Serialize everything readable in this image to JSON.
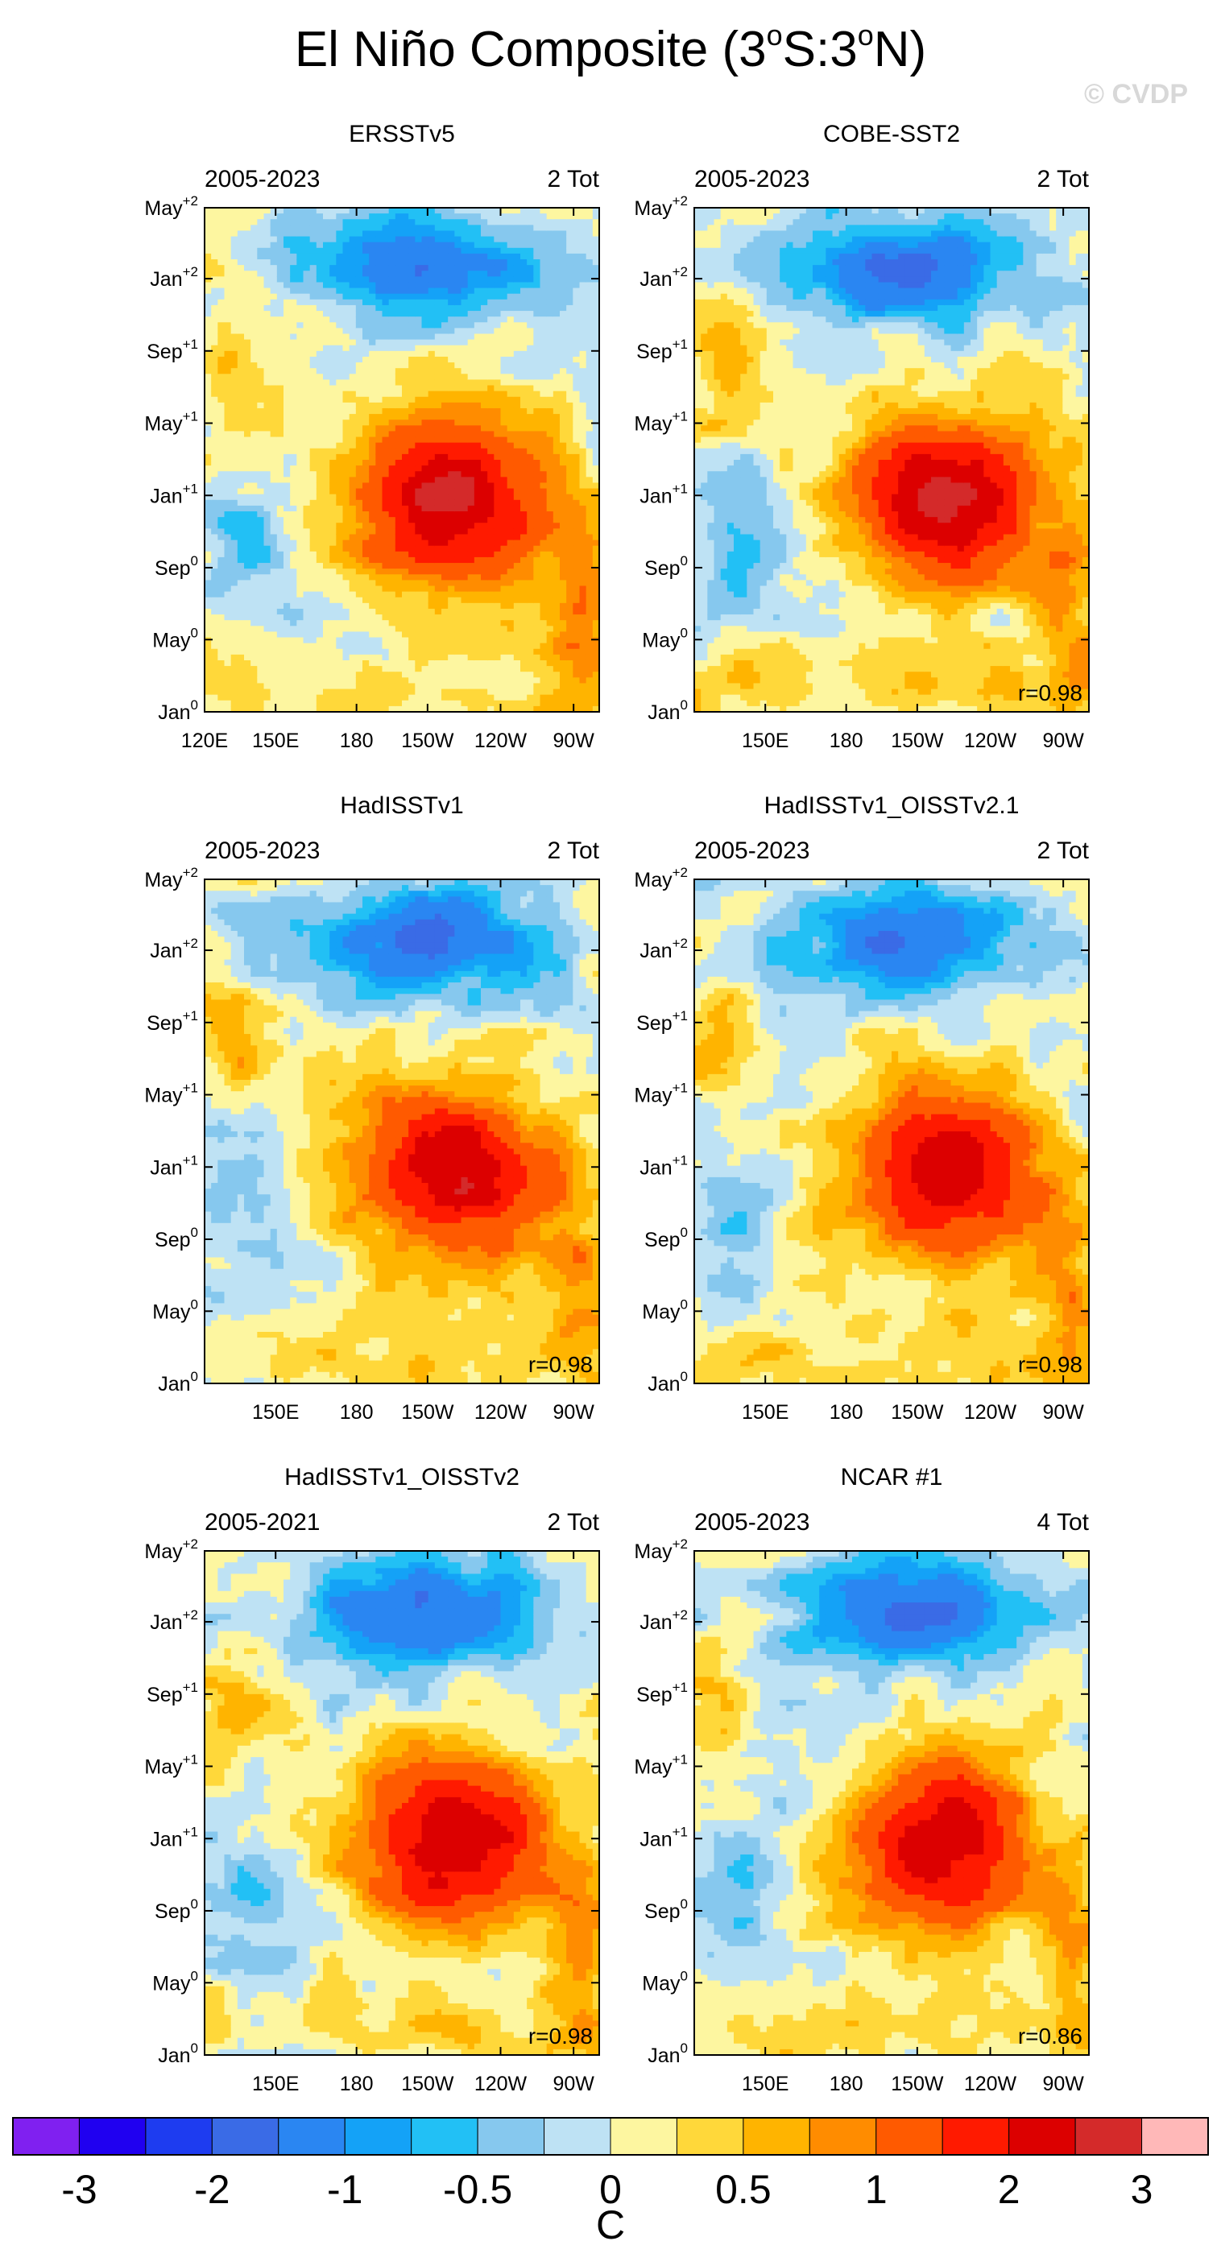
{
  "title": "El Niño Composite (3°S:3°N)",
  "title_parts": {
    "base": "El Niño Composite (3",
    "sup1": "o",
    "mid": "S:3",
    "sup2": "o",
    "end": "N)"
  },
  "watermark": "© CVDP",
  "colors": {
    "palette": [
      "#8020f0",
      "#2000f0",
      "#1e3cf0",
      "#3a6be6",
      "#2a86f2",
      "#14a2f7",
      "#22c0f5",
      "#86c8ee",
      "#bee2f4",
      "#fdf6a0",
      "#ffd83a",
      "#ffb400",
      "#ff8c00",
      "#ff5a00",
      "#ff1a00",
      "#dc0000",
      "#d42a2a",
      "#ffb8b8"
    ]
  },
  "chart_data": {
    "type": "heatmap",
    "variable": "SST anomaly",
    "units": "C",
    "contour_levels": [
      -3,
      -2.5,
      -2,
      -1.5,
      -1,
      -0.75,
      -0.5,
      -0.25,
      0,
      0.25,
      0.5,
      0.75,
      1,
      1.5,
      2,
      2.5,
      3
    ],
    "colorbar_ticks": [
      "-3",
      "-2",
      "-1",
      "-0.5",
      "0",
      "0.5",
      "1",
      "2",
      "3"
    ],
    "colorbar_label": "C",
    "y_ticks": [
      {
        "base": "Jan",
        "sup": "0"
      },
      {
        "base": "May",
        "sup": "0"
      },
      {
        "base": "Sep",
        "sup": "0"
      },
      {
        "base": "Jan",
        "sup": "+1"
      },
      {
        "base": "May",
        "sup": "+1"
      },
      {
        "base": "Sep",
        "sup": "+1"
      },
      {
        "base": "Jan",
        "sup": "+2"
      },
      {
        "base": "May",
        "sup": "+2"
      }
    ],
    "panels": [
      {
        "name": "ERSSTv5",
        "period": "2005-2023",
        "count": "2 Tot",
        "r": null,
        "first_x_label": true,
        "peak": 2.6,
        "seed": 1,
        "x_ticks": [
          "120E",
          "150E",
          "180",
          "150W",
          "120W",
          "90W"
        ]
      },
      {
        "name": "COBE-SST2",
        "period": "2005-2023",
        "count": "2 Tot",
        "r": "r=0.98",
        "first_x_label": false,
        "peak": 2.5,
        "seed": 2,
        "x_ticks": [
          "150E",
          "180",
          "150W",
          "120W",
          "90W"
        ]
      },
      {
        "name": "HadISSTv1",
        "period": "2005-2023",
        "count": "2 Tot",
        "r": "r=0.98",
        "first_x_label": false,
        "peak": 2.4,
        "seed": 3,
        "x_ticks": [
          "150E",
          "180",
          "150W",
          "120W",
          "90W"
        ]
      },
      {
        "name": "HadISSTv1_OISSTv2.1",
        "period": "2005-2023",
        "count": "2 Tot",
        "r": "r=0.98",
        "first_x_label": false,
        "peak": 2.4,
        "seed": 4,
        "x_ticks": [
          "150E",
          "180",
          "150W",
          "120W",
          "90W"
        ]
      },
      {
        "name": "HadISSTv1_OISSTv2",
        "period": "2005-2021",
        "count": "2 Tot",
        "r": "r=0.98",
        "first_x_label": false,
        "peak": 2.5,
        "seed": 5,
        "x_ticks": [
          "150E",
          "180",
          "150W",
          "120W",
          "90W"
        ]
      },
      {
        "name": "NCAR #1",
        "period": "2005-2023",
        "count": "4 Tot",
        "r": "r=0.86",
        "first_x_label": false,
        "peak": 2.3,
        "seed": 6,
        "x_ticks": [
          "150E",
          "180",
          "150W",
          "120W",
          "90W"
        ]
      }
    ]
  }
}
